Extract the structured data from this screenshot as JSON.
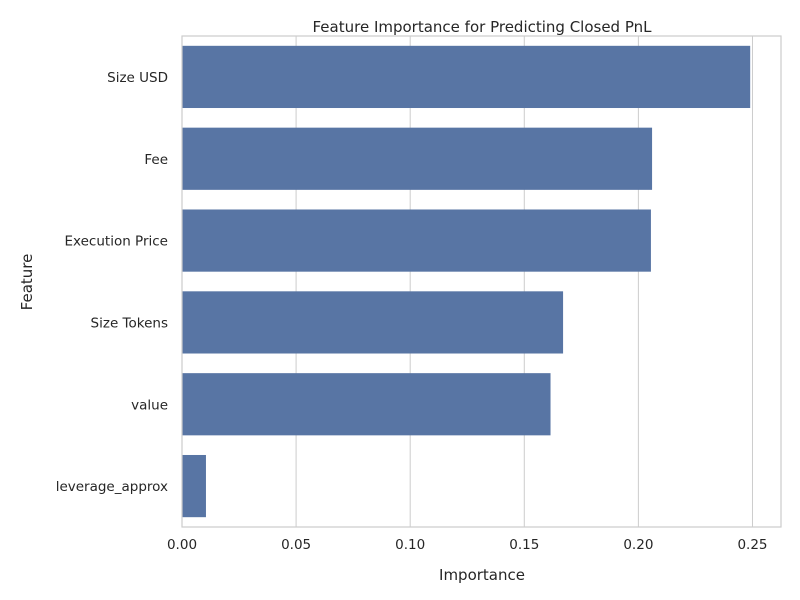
{
  "chart_data": {
    "type": "bar",
    "orientation": "horizontal",
    "title": "Feature Importance for Predicting Closed PnL",
    "xlabel": "Importance",
    "ylabel": "Feature",
    "categories": [
      "Size USD",
      "Fee",
      "Execution Price",
      "Size Tokens",
      "value",
      "leverage_approx"
    ],
    "values": [
      0.249,
      0.206,
      0.2055,
      0.167,
      0.1615,
      0.0105
    ],
    "xlim": [
      0,
      0.2625
    ],
    "xticks": [
      0.0,
      0.05,
      0.1,
      0.15,
      0.2,
      0.25
    ],
    "xtick_labels": [
      "0.00",
      "0.05",
      "0.10",
      "0.15",
      "0.20",
      "0.25"
    ],
    "grid": true,
    "bar_color": "#5875a4",
    "grid_color": "#cccccc"
  }
}
